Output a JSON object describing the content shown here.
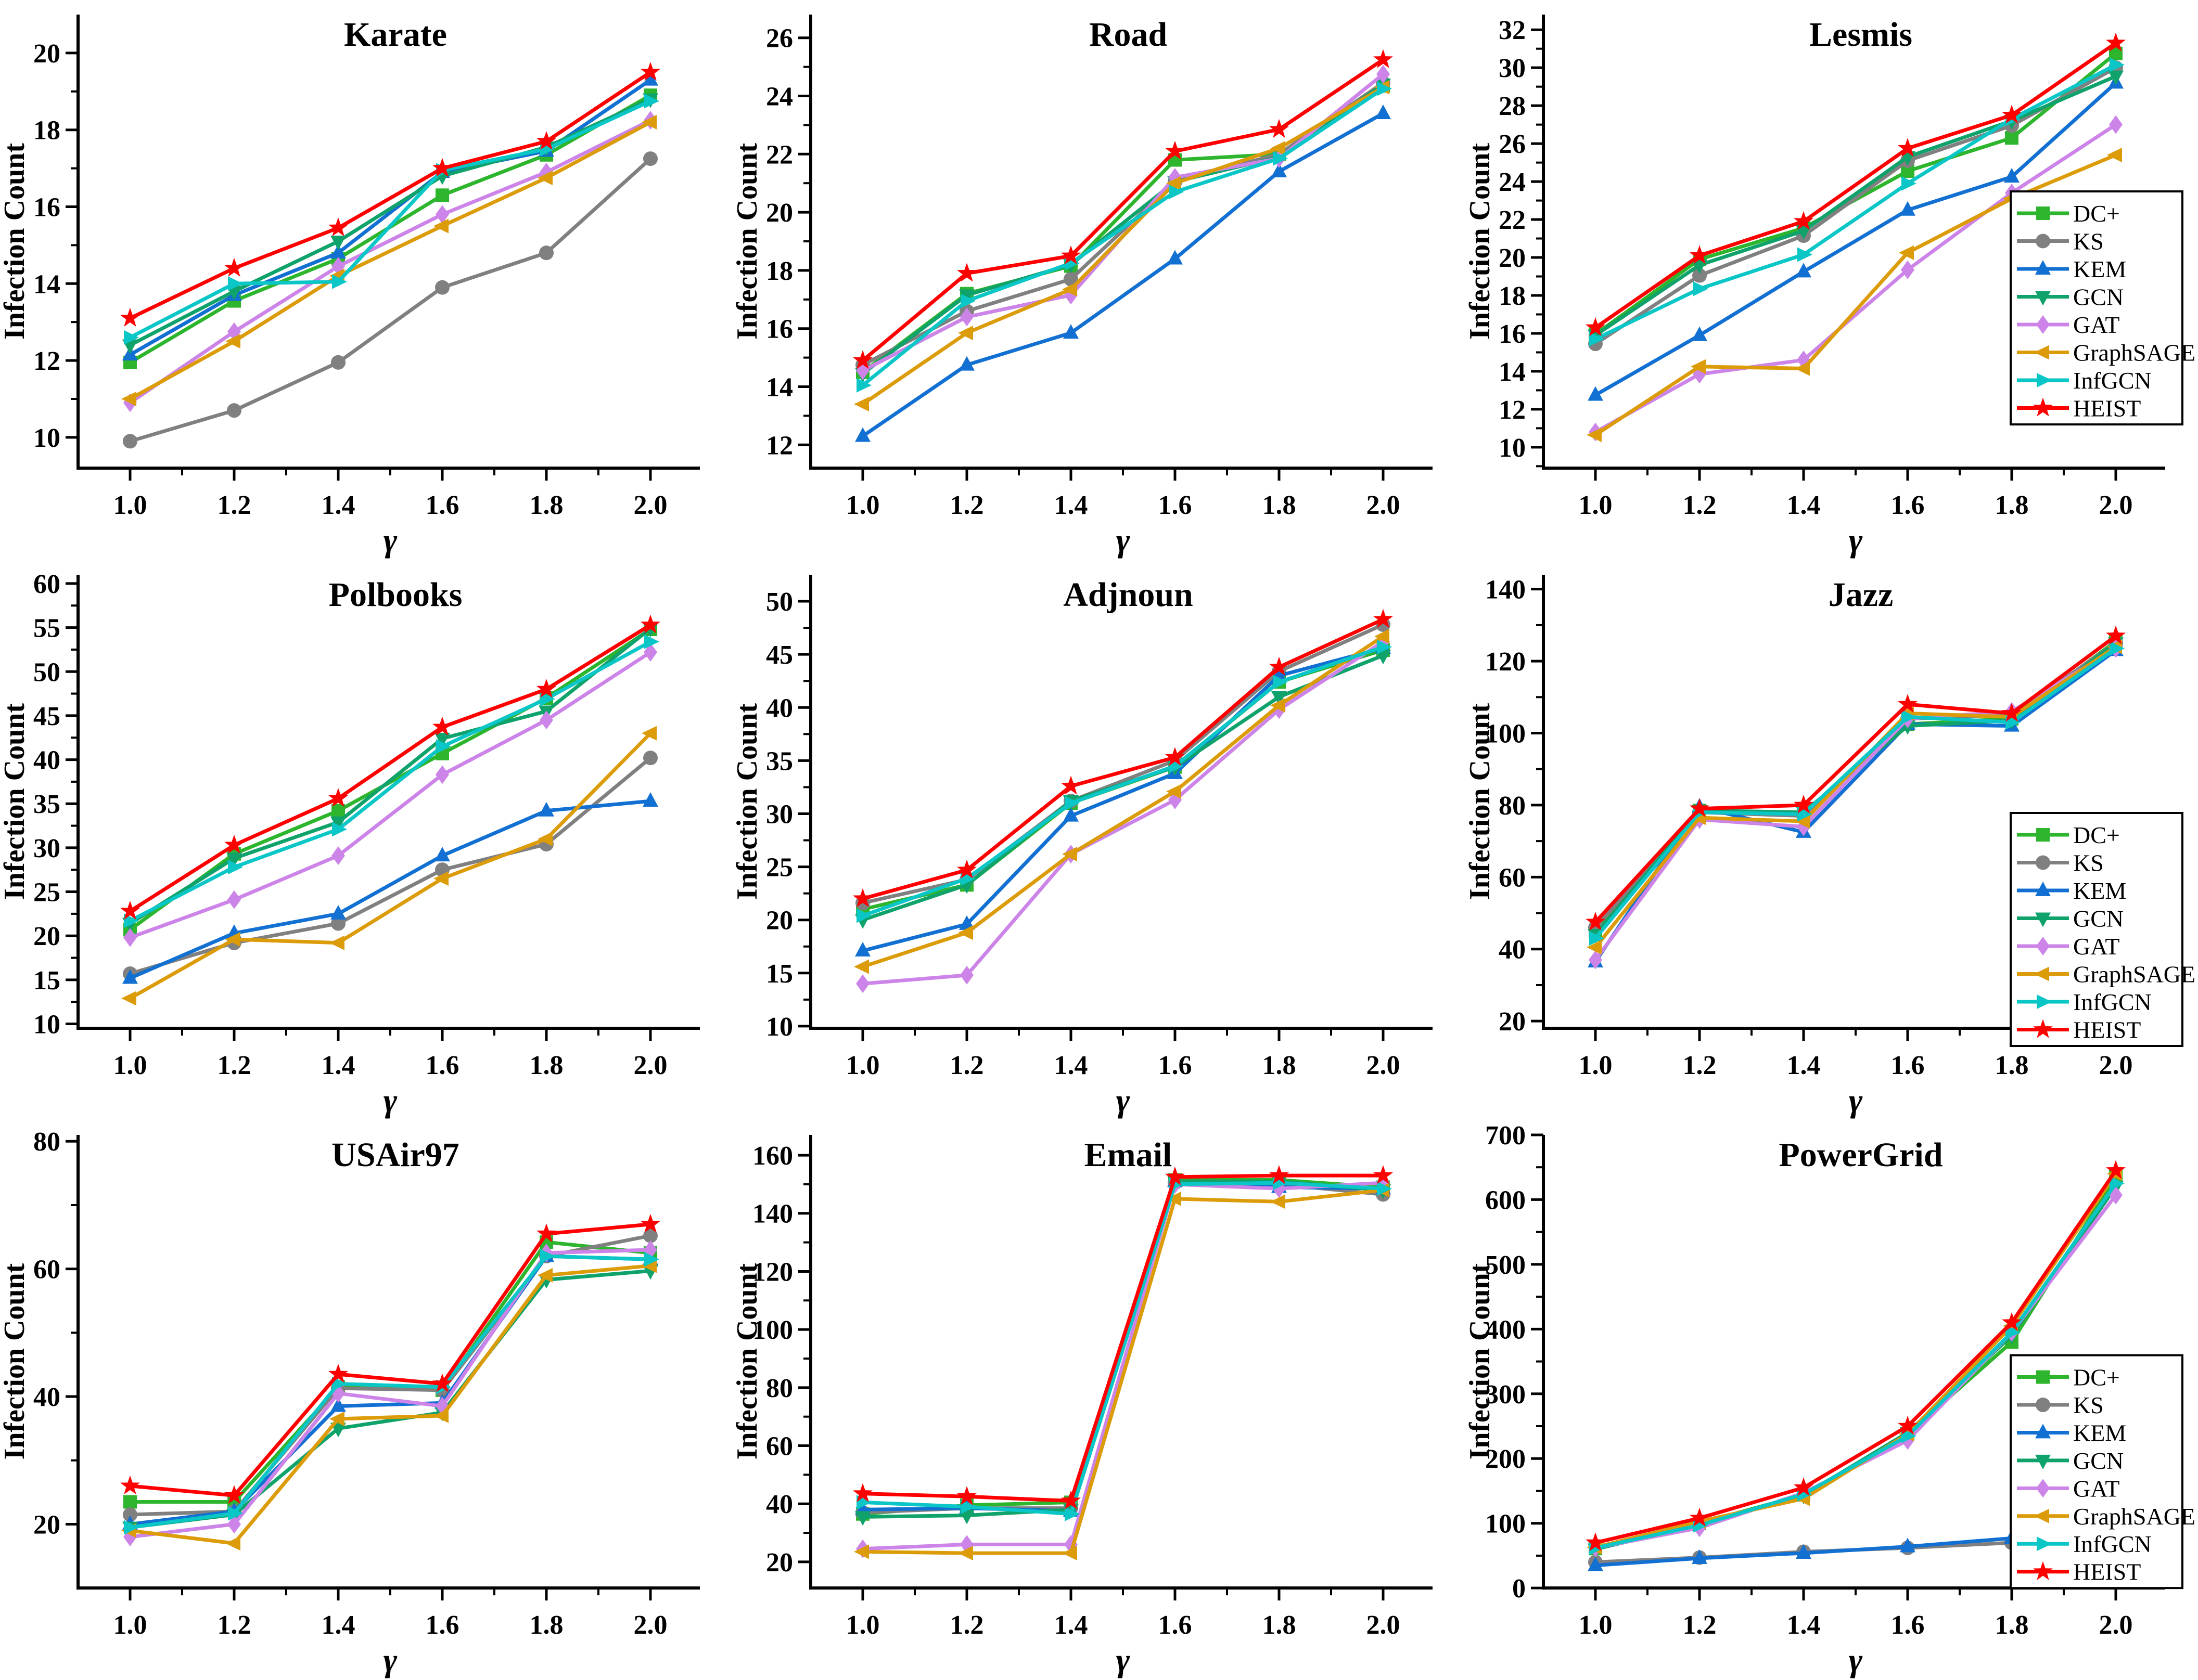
{
  "figure": {
    "background": "#ffffff",
    "xlabel": "γ",
    "ylabel": "Infection Count",
    "x_tick_labels": [
      "1.0",
      "1.2",
      "1.4",
      "1.6",
      "1.8",
      "2.0"
    ],
    "x_values": [
      1.0,
      1.2,
      1.4,
      1.6,
      1.8,
      2.0
    ],
    "xlim": [
      0.88,
      2.095
    ],
    "legend_entries": [
      "DC+",
      "KS",
      "KEM",
      "GCN",
      "GAT",
      "GraphSAGE",
      "InfGCN",
      "HEIST"
    ],
    "series_style": {
      "DC+": {
        "color": "#2db52d",
        "marker": "square"
      },
      "KS": {
        "color": "#808080",
        "marker": "circle"
      },
      "KEM": {
        "color": "#1170d2",
        "marker": "triangle-up"
      },
      "GCN": {
        "color": "#0fa36b",
        "marker": "triangle-down"
      },
      "GAT": {
        "color": "#cd84e8",
        "marker": "diamond"
      },
      "GraphSAGE": {
        "color": "#dc9c0a",
        "marker": "triangle-left"
      },
      "InfGCN": {
        "color": "#0ac6c6",
        "marker": "triangle-right"
      },
      "HEIST": {
        "color": "#fe0000",
        "marker": "star"
      }
    }
  },
  "chart_data": [
    {
      "type": "line",
      "title": "Karate",
      "xlabel": "γ",
      "ylabel": "Infection Count",
      "ylim": [
        9.2,
        21.0
      ],
      "y_ticks": [
        10,
        12,
        14,
        16,
        18,
        20
      ],
      "legend": false,
      "series": [
        {
          "name": "DC+",
          "values": [
            11.95,
            13.55,
            14.65,
            16.3,
            17.35,
            18.9
          ]
        },
        {
          "name": "KS",
          "values": [
            9.9,
            10.7,
            11.95,
            13.9,
            14.8,
            17.25
          ]
        },
        {
          "name": "KEM",
          "values": [
            12.15,
            13.7,
            14.8,
            16.9,
            17.45,
            19.3
          ]
        },
        {
          "name": "GCN",
          "values": [
            12.4,
            13.8,
            15.1,
            16.8,
            17.55,
            18.8
          ]
        },
        {
          "name": "GAT",
          "values": [
            10.9,
            12.75,
            14.45,
            15.8,
            16.9,
            18.25
          ]
        },
        {
          "name": "GraphSAGE",
          "values": [
            11.0,
            12.5,
            14.2,
            15.5,
            16.75,
            18.2
          ]
        },
        {
          "name": "InfGCN",
          "values": [
            12.6,
            14.0,
            14.05,
            16.95,
            17.5,
            18.75
          ]
        },
        {
          "name": "HEIST",
          "values": [
            13.1,
            14.4,
            15.45,
            17.0,
            17.7,
            19.5
          ]
        }
      ]
    },
    {
      "type": "line",
      "title": "Road",
      "xlabel": "γ",
      "ylabel": "Infection Count",
      "ylim": [
        11.2,
        26.8
      ],
      "y_ticks": [
        12,
        14,
        16,
        18,
        20,
        22,
        24,
        26
      ],
      "legend": false,
      "series": [
        {
          "name": "DC+",
          "values": [
            14.5,
            17.2,
            18.15,
            21.8,
            22.0,
            24.35
          ]
        },
        {
          "name": "KS",
          "values": [
            14.75,
            16.6,
            17.7,
            21.05,
            22.0,
            24.45
          ]
        },
        {
          "name": "KEM",
          "values": [
            12.3,
            14.75,
            15.85,
            18.4,
            21.4,
            23.4
          ]
        },
        {
          "name": "GCN",
          "values": [
            14.45,
            17.15,
            18.2,
            21.05,
            21.9,
            24.4
          ]
        },
        {
          "name": "GAT",
          "values": [
            14.55,
            16.4,
            17.15,
            21.2,
            21.85,
            24.75
          ]
        },
        {
          "name": "GraphSAGE",
          "values": [
            13.4,
            15.85,
            17.35,
            21.0,
            22.2,
            24.3
          ]
        },
        {
          "name": "InfGCN",
          "values": [
            14.05,
            16.95,
            18.25,
            20.7,
            21.85,
            24.25
          ]
        },
        {
          "name": "HEIST",
          "values": [
            14.9,
            17.9,
            18.5,
            22.1,
            22.85,
            25.25
          ]
        }
      ]
    },
    {
      "type": "line",
      "title": "Lesmis",
      "xlabel": "γ",
      "ylabel": "Infection Count",
      "ylim": [
        8.9,
        32.8
      ],
      "y_ticks": [
        10,
        12,
        14,
        16,
        18,
        20,
        22,
        24,
        26,
        28,
        30,
        32
      ],
      "legend": true,
      "legend_y": 368,
      "series": [
        {
          "name": "DC+",
          "values": [
            15.95,
            19.9,
            21.55,
            24.55,
            26.3,
            30.75
          ]
        },
        {
          "name": "KS",
          "values": [
            15.45,
            19.05,
            21.15,
            25.1,
            26.95,
            30.0
          ]
        },
        {
          "name": "KEM",
          "values": [
            12.75,
            15.9,
            19.25,
            22.5,
            24.25,
            29.2
          ]
        },
        {
          "name": "GCN",
          "values": [
            15.9,
            19.6,
            21.4,
            25.3,
            27.2,
            29.55
          ]
        },
        {
          "name": "GAT",
          "values": [
            10.8,
            13.85,
            14.6,
            19.35,
            23.4,
            27.0
          ]
        },
        {
          "name": "GraphSAGE",
          "values": [
            10.65,
            14.25,
            14.15,
            20.25,
            23.1,
            25.4
          ]
        },
        {
          "name": "InfGCN",
          "values": [
            15.7,
            18.35,
            20.15,
            23.9,
            27.3,
            30.15
          ]
        },
        {
          "name": "HEIST",
          "values": [
            16.3,
            20.1,
            21.9,
            25.75,
            27.5,
            31.3
          ]
        }
      ]
    },
    {
      "type": "line",
      "title": "Polbooks",
      "xlabel": "γ",
      "ylabel": "Infection Count",
      "ylim": [
        9.5,
        61.0
      ],
      "y_ticks": [
        10,
        15,
        20,
        25,
        30,
        35,
        40,
        45,
        50,
        55,
        60
      ],
      "legend": false,
      "series": [
        {
          "name": "DC+",
          "values": [
            20.7,
            29.3,
            34.2,
            40.7,
            47.0,
            54.8
          ]
        },
        {
          "name": "KS",
          "values": [
            15.7,
            19.2,
            21.4,
            27.5,
            30.4,
            40.2
          ]
        },
        {
          "name": "KEM",
          "values": [
            15.2,
            20.3,
            22.5,
            29.1,
            34.2,
            35.3
          ]
        },
        {
          "name": "GCN",
          "values": [
            21.4,
            28.8,
            32.9,
            42.4,
            45.5,
            54.9
          ]
        },
        {
          "name": "GAT",
          "values": [
            19.8,
            24.1,
            29.1,
            38.3,
            44.5,
            52.2
          ]
        },
        {
          "name": "GraphSAGE",
          "values": [
            12.9,
            19.6,
            19.2,
            26.5,
            31.0,
            43.0
          ]
        },
        {
          "name": "InfGCN",
          "values": [
            21.7,
            27.8,
            32.1,
            41.5,
            46.9,
            53.4
          ]
        },
        {
          "name": "HEIST",
          "values": [
            22.8,
            30.3,
            35.6,
            43.7,
            48.0,
            55.3
          ]
        }
      ]
    },
    {
      "type": "line",
      "title": "Adjnoun",
      "xlabel": "γ",
      "ylabel": "Infection Count",
      "ylim": [
        9.8,
        52.5
      ],
      "y_ticks": [
        10,
        15,
        20,
        25,
        30,
        35,
        40,
        45,
        50
      ],
      "legend": false,
      "series": [
        {
          "name": "DC+",
          "values": [
            21.0,
            23.3,
            31.0,
            34.4,
            42.4,
            45.4
          ]
        },
        {
          "name": "KS",
          "values": [
            21.6,
            23.8,
            31.2,
            35.0,
            43.4,
            47.8
          ]
        },
        {
          "name": "KEM",
          "values": [
            17.1,
            19.6,
            29.8,
            33.8,
            43.0,
            45.6
          ]
        },
        {
          "name": "GCN",
          "values": [
            20.0,
            23.3,
            31.2,
            34.4,
            41.0,
            44.9
          ]
        },
        {
          "name": "GAT",
          "values": [
            14.0,
            14.8,
            26.2,
            31.3,
            39.8,
            46.2
          ]
        },
        {
          "name": "GraphSAGE",
          "values": [
            15.6,
            18.8,
            26.2,
            32.1,
            40.2,
            46.7
          ]
        },
        {
          "name": "InfGCN",
          "values": [
            20.4,
            23.9,
            31.0,
            34.5,
            42.4,
            45.7
          ]
        },
        {
          "name": "HEIST",
          "values": [
            22.0,
            24.7,
            32.6,
            35.3,
            43.8,
            48.3
          ]
        }
      ]
    },
    {
      "type": "line",
      "title": "Jazz",
      "xlabel": "γ",
      "ylabel": "Infection Count",
      "ylim": [
        18.0,
        144.0
      ],
      "y_ticks": [
        20,
        40,
        60,
        80,
        100,
        120,
        140
      ],
      "legend": true,
      "legend_y": 486,
      "series": [
        {
          "name": "DC+",
          "values": [
            45.0,
            78.5,
            77.5,
            102.5,
            104.0,
            125.5
          ]
        },
        {
          "name": "KS",
          "values": [
            46.0,
            78.0,
            77.0,
            104.0,
            105.0,
            125.0
          ]
        },
        {
          "name": "KEM",
          "values": [
            36.5,
            79.5,
            72.5,
            102.5,
            102.0,
            123.0
          ]
        },
        {
          "name": "GCN",
          "values": [
            44.0,
            78.5,
            78.0,
            102.0,
            103.5,
            125.0
          ]
        },
        {
          "name": "GAT",
          "values": [
            37.0,
            76.0,
            74.0,
            104.0,
            106.0,
            123.5
          ]
        },
        {
          "name": "GraphSAGE",
          "values": [
            40.5,
            76.5,
            75.5,
            105.5,
            104.5,
            124.0
          ]
        },
        {
          "name": "InfGCN",
          "values": [
            43.0,
            78.0,
            77.5,
            104.5,
            103.0,
            123.5
          ]
        },
        {
          "name": "HEIST",
          "values": [
            47.5,
            79.0,
            80.0,
            108.0,
            105.5,
            127.0
          ]
        }
      ]
    },
    {
      "type": "line",
      "title": "USAir97",
      "xlabel": "γ",
      "ylabel": "Infection Count",
      "ylim": [
        10.0,
        81.0
      ],
      "y_ticks": [
        20,
        40,
        60,
        80
      ],
      "legend": false,
      "series": [
        {
          "name": "DC+",
          "values": [
            23.5,
            23.5,
            41.5,
            41.0,
            64.2,
            62.5
          ]
        },
        {
          "name": "KS",
          "values": [
            21.5,
            22.0,
            41.3,
            41.0,
            62.0,
            65.2
          ]
        },
        {
          "name": "KEM",
          "values": [
            20.0,
            22.0,
            38.5,
            39.0,
            62.0,
            61.5
          ]
        },
        {
          "name": "GCN",
          "values": [
            19.5,
            21.5,
            35.0,
            37.5,
            58.3,
            59.7
          ]
        },
        {
          "name": "GAT",
          "values": [
            18.0,
            20.0,
            40.5,
            38.5,
            62.5,
            63.0
          ]
        },
        {
          "name": "GraphSAGE",
          "values": [
            19.0,
            17.0,
            36.5,
            37.0,
            59.0,
            60.5
          ]
        },
        {
          "name": "InfGCN",
          "values": [
            19.5,
            21.7,
            42.0,
            41.5,
            62.0,
            61.5
          ]
        },
        {
          "name": "HEIST",
          "values": [
            26.0,
            24.5,
            43.5,
            42.0,
            65.5,
            67.0
          ]
        }
      ]
    },
    {
      "type": "line",
      "title": "Email",
      "xlabel": "γ",
      "ylabel": "Infection Count",
      "ylim": [
        11.0,
        167.0
      ],
      "y_ticks": [
        20,
        40,
        60,
        80,
        100,
        120,
        140,
        160
      ],
      "legend": false,
      "series": [
        {
          "name": "DC+",
          "values": [
            36.5,
            39.5,
            40.5,
            151.5,
            151.5,
            149.0
          ]
        },
        {
          "name": "KS",
          "values": [
            37.0,
            38.5,
            38.5,
            150.5,
            150.0,
            146.5
          ]
        },
        {
          "name": "KEM",
          "values": [
            38.0,
            38.5,
            37.5,
            151.0,
            149.0,
            148.5
          ]
        },
        {
          "name": "GCN",
          "values": [
            35.5,
            36.0,
            38.0,
            151.0,
            151.0,
            148.0
          ]
        },
        {
          "name": "GAT",
          "values": [
            24.5,
            26.0,
            26.0,
            150.0,
            148.5,
            150.5
          ]
        },
        {
          "name": "GraphSAGE",
          "values": [
            23.5,
            23.0,
            23.0,
            145.0,
            144.0,
            148.0
          ]
        },
        {
          "name": "InfGCN",
          "values": [
            40.5,
            39.0,
            36.5,
            150.0,
            150.5,
            148.5
          ]
        },
        {
          "name": "HEIST",
          "values": [
            43.5,
            42.5,
            41.0,
            152.5,
            153.0,
            153.0
          ]
        }
      ]
    },
    {
      "type": "line",
      "title": "PowerGrid",
      "xlabel": "γ",
      "ylabel": "Infection Count",
      "ylim": [
        0.0,
        700.0
      ],
      "y_ticks": [
        0,
        100,
        200,
        300,
        400,
        500,
        600,
        700
      ],
      "legend": true,
      "legend_y": 452,
      "series": [
        {
          "name": "DC+",
          "values": [
            61,
            100,
            144,
            238,
            380,
            635
          ]
        },
        {
          "name": "KS",
          "values": [
            40,
            47,
            56,
            62,
            70,
            86
          ]
        },
        {
          "name": "KEM",
          "values": [
            35,
            46,
            54,
            64,
            77,
            90
          ]
        },
        {
          "name": "GCN",
          "values": [
            60,
            98,
            143,
            240,
            390,
            620
          ]
        },
        {
          "name": "GAT",
          "values": [
            62,
            93,
            147,
            228,
            395,
            607
          ]
        },
        {
          "name": "GraphSAGE",
          "values": [
            63,
            103,
            138,
            238,
            405,
            640
          ]
        },
        {
          "name": "InfGCN",
          "values": [
            62,
            97,
            145,
            235,
            395,
            625
          ]
        },
        {
          "name": "HEIST",
          "values": [
            70,
            108,
            155,
            250,
            410,
            645
          ]
        }
      ]
    }
  ]
}
